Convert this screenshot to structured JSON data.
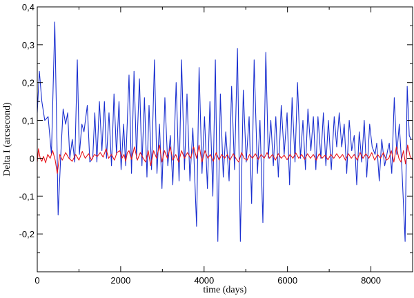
{
  "chart_data": {
    "type": "line",
    "title": "",
    "xlabel": "time (days)",
    "ylabel": "Delta I (arcsecond)",
    "xlim": [
      0,
      9000
    ],
    "ylim": [
      -0.3,
      0.4
    ],
    "x_ticks": [
      {
        "value": 0,
        "label": "0"
      },
      {
        "value": 2000,
        "label": "2000"
      },
      {
        "value": 4000,
        "label": "4000"
      },
      {
        "value": 6000,
        "label": "6000"
      },
      {
        "value": 8000,
        "label": "8000"
      }
    ],
    "y_ticks": [
      {
        "value": -0.2,
        "label": "-0,2"
      },
      {
        "value": -0.1,
        "label": "-0,1"
      },
      {
        "value": 0,
        "label": "0"
      },
      {
        "value": 0.1,
        "label": "0,1"
      },
      {
        "value": 0.2,
        "label": "0,2"
      },
      {
        "value": 0.3,
        "label": "0,3"
      },
      {
        "value": 0.4,
        "label": "0,4"
      }
    ],
    "grid": false,
    "legend": "none",
    "series": [
      {
        "color": "#1a2fd0",
        "points": [
          [
            0,
            0.12
          ],
          [
            50,
            0.23
          ],
          [
            110,
            0.15
          ],
          [
            180,
            0.1
          ],
          [
            260,
            0.11
          ],
          [
            340,
            0.01
          ],
          [
            420,
            0.36
          ],
          [
            470,
            0.06
          ],
          [
            500,
            -0.15
          ],
          [
            560,
            0.0
          ],
          [
            620,
            0.13
          ],
          [
            680,
            0.09
          ],
          [
            730,
            0.12
          ],
          [
            780,
            0.0
          ],
          [
            840,
            0.05
          ],
          [
            900,
            -0.01
          ],
          [
            960,
            0.26
          ],
          [
            1010,
            0.01
          ],
          [
            1070,
            0.09
          ],
          [
            1120,
            0.07
          ],
          [
            1200,
            0.14
          ],
          [
            1260,
            -0.01
          ],
          [
            1330,
            0.0
          ],
          [
            1380,
            0.12
          ],
          [
            1430,
            -0.01
          ],
          [
            1490,
            0.15
          ],
          [
            1550,
            0.02
          ],
          [
            1610,
            0.15
          ],
          [
            1660,
            0.0
          ],
          [
            1720,
            0.12
          ],
          [
            1780,
            -0.02
          ],
          [
            1840,
            0.17
          ],
          [
            1900,
            0.01
          ],
          [
            1960,
            0.15
          ],
          [
            2010,
            -0.03
          ],
          [
            2070,
            0.09
          ],
          [
            2120,
            -0.02
          ],
          [
            2200,
            0.22
          ],
          [
            2260,
            -0.04
          ],
          [
            2320,
            0.23
          ],
          [
            2380,
            0.0
          ],
          [
            2450,
            0.21
          ],
          [
            2510,
            -0.02
          ],
          [
            2570,
            0.16
          ],
          [
            2630,
            -0.05
          ],
          [
            2680,
            0.14
          ],
          [
            2740,
            -0.03
          ],
          [
            2810,
            0.26
          ],
          [
            2870,
            -0.04
          ],
          [
            2930,
            0.09
          ],
          [
            2990,
            -0.08
          ],
          [
            3060,
            0.16
          ],
          [
            3130,
            -0.02
          ],
          [
            3190,
            0.06
          ],
          [
            3250,
            -0.07
          ],
          [
            3330,
            0.2
          ],
          [
            3400,
            -0.06
          ],
          [
            3460,
            0.26
          ],
          [
            3530,
            -0.03
          ],
          [
            3590,
            0.17
          ],
          [
            3660,
            -0.06
          ],
          [
            3730,
            0.08
          ],
          [
            3820,
            -0.18
          ],
          [
            3880,
            0.24
          ],
          [
            3950,
            -0.04
          ],
          [
            4010,
            0.11
          ],
          [
            4080,
            -0.08
          ],
          [
            4140,
            0.15
          ],
          [
            4210,
            -0.1
          ],
          [
            4270,
            0.26
          ],
          [
            4330,
            -0.22
          ],
          [
            4390,
            0.17
          ],
          [
            4460,
            -0.05
          ],
          [
            4520,
            0.07
          ],
          [
            4600,
            -0.06
          ],
          [
            4660,
            0.19
          ],
          [
            4730,
            -0.03
          ],
          [
            4800,
            0.29
          ],
          [
            4870,
            -0.22
          ],
          [
            4940,
            0.18
          ],
          [
            5010,
            -0.01
          ],
          [
            5080,
            0.11
          ],
          [
            5140,
            -0.12
          ],
          [
            5200,
            0.26
          ],
          [
            5280,
            -0.04
          ],
          [
            5340,
            0.1
          ],
          [
            5410,
            -0.17
          ],
          [
            5480,
            0.28
          ],
          [
            5540,
            0.0
          ],
          [
            5600,
            0.1
          ],
          [
            5660,
            -0.02
          ],
          [
            5720,
            0.11
          ],
          [
            5780,
            -0.05
          ],
          [
            5850,
            0.14
          ],
          [
            5920,
            0.01
          ],
          [
            5990,
            0.12
          ],
          [
            6050,
            -0.07
          ],
          [
            6110,
            0.16
          ],
          [
            6180,
            -0.01
          ],
          [
            6240,
            0.2
          ],
          [
            6310,
            0.0
          ],
          [
            6370,
            0.1
          ],
          [
            6430,
            -0.03
          ],
          [
            6490,
            0.13
          ],
          [
            6560,
            0.02
          ],
          [
            6620,
            0.11
          ],
          [
            6680,
            -0.03
          ],
          [
            6730,
            0.11
          ],
          [
            6800,
            0.0
          ],
          [
            6860,
            0.12
          ],
          [
            6920,
            -0.02
          ],
          [
            6980,
            0.1
          ],
          [
            7050,
            -0.03
          ],
          [
            7120,
            0.11
          ],
          [
            7180,
            0.03
          ],
          [
            7240,
            0.12
          ],
          [
            7300,
            0.03
          ],
          [
            7360,
            0.09
          ],
          [
            7420,
            -0.04
          ],
          [
            7480,
            0.1
          ],
          [
            7540,
            0.02
          ],
          [
            7600,
            0.06
          ],
          [
            7660,
            -0.07
          ],
          [
            7720,
            0.07
          ],
          [
            7780,
            -0.01
          ],
          [
            7840,
            0.1
          ],
          [
            7900,
            -0.05
          ],
          [
            7970,
            0.09
          ],
          [
            8030,
            0.03
          ],
          [
            8100,
            0.01
          ],
          [
            8140,
            0.04
          ],
          [
            8200,
            -0.06
          ],
          [
            8260,
            0.05
          ],
          [
            8330,
            -0.02
          ],
          [
            8400,
            0.02
          ],
          [
            8440,
            0.04
          ],
          [
            8500,
            -0.04
          ],
          [
            8560,
            0.16
          ],
          [
            8620,
            0.01
          ],
          [
            8680,
            0.09
          ],
          [
            8740,
            -0.02
          ],
          [
            8820,
            -0.22
          ],
          [
            8870,
            0.19
          ],
          [
            8920,
            0.06
          ],
          [
            8960,
            0.05
          ],
          [
            9000,
            0.05
          ]
        ]
      },
      {
        "color": "#e8161b",
        "points": [
          [
            0,
            -0.01
          ],
          [
            30,
            0.025
          ],
          [
            70,
            0.0
          ],
          [
            110,
            -0.008
          ],
          [
            150,
            0.005
          ],
          [
            200,
            -0.012
          ],
          [
            250,
            0.01
          ],
          [
            310,
            0.0
          ],
          [
            370,
            0.02
          ],
          [
            430,
            -0.005
          ],
          [
            480,
            -0.04
          ],
          [
            540,
            0.01
          ],
          [
            600,
            -0.005
          ],
          [
            680,
            0.015
          ],
          [
            760,
            0.0
          ],
          [
            840,
            -0.008
          ],
          [
            920,
            0.01
          ],
          [
            1000,
            -0.005
          ],
          [
            1080,
            0.018
          ],
          [
            1150,
            0.0
          ],
          [
            1230,
            0.012
          ],
          [
            1300,
            -0.005
          ],
          [
            1370,
            0.01
          ],
          [
            1440,
            0.005
          ],
          [
            1510,
            0.015
          ],
          [
            1580,
            0.003
          ],
          [
            1650,
            0.025
          ],
          [
            1710,
            0.0
          ],
          [
            1780,
            0.01
          ],
          [
            1850,
            -0.005
          ],
          [
            1910,
            0.015
          ],
          [
            1980,
            0.02
          ],
          [
            2030,
            0.0
          ],
          [
            2080,
            0.01
          ],
          [
            2120,
            -0.008
          ],
          [
            2160,
            0.015
          ],
          [
            2200,
            0.02
          ],
          [
            2260,
            -0.003
          ],
          [
            2330,
            0.03
          ],
          [
            2400,
            -0.005
          ],
          [
            2470,
            0.015
          ],
          [
            2540,
            0.0
          ],
          [
            2600,
            -0.01
          ],
          [
            2660,
            0.02
          ],
          [
            2720,
            -0.02
          ],
          [
            2790,
            0.02
          ],
          [
            2860,
            0.0
          ],
          [
            2930,
            0.035
          ],
          [
            2990,
            -0.01
          ],
          [
            3050,
            0.02
          ],
          [
            3120,
            0.0
          ],
          [
            3190,
            0.03
          ],
          [
            3250,
            -0.005
          ],
          [
            3320,
            0.01
          ],
          [
            3390,
            -0.01
          ],
          [
            3460,
            0.02
          ],
          [
            3530,
            0.0
          ],
          [
            3600,
            0.015
          ],
          [
            3680,
            0.0
          ],
          [
            3750,
            0.03
          ],
          [
            3820,
            0.0
          ],
          [
            3880,
            0.035
          ],
          [
            3950,
            -0.01
          ],
          [
            4020,
            0.02
          ],
          [
            4090,
            0.0
          ],
          [
            4150,
            0.01
          ],
          [
            4220,
            -0.008
          ],
          [
            4290,
            0.015
          ],
          [
            4360,
            -0.005
          ],
          [
            4420,
            0.01
          ],
          [
            4490,
            0.0
          ],
          [
            4560,
            0.01
          ],
          [
            4620,
            -0.005
          ],
          [
            4700,
            0.012
          ],
          [
            4760,
            0.0
          ],
          [
            4830,
            -0.01
          ],
          [
            4900,
            0.015
          ],
          [
            4960,
            0.0
          ],
          [
            5030,
            -0.005
          ],
          [
            5090,
            0.01
          ],
          [
            5160,
            0.0
          ],
          [
            5230,
            0.012
          ],
          [
            5300,
            -0.003
          ],
          [
            5370,
            0.01
          ],
          [
            5440,
            0.0
          ],
          [
            5510,
            0.015
          ],
          [
            5570,
            0.0
          ],
          [
            5640,
            0.01
          ],
          [
            5710,
            -0.005
          ],
          [
            5780,
            0.012
          ],
          [
            5850,
            0.0
          ],
          [
            5920,
            0.008
          ],
          [
            5990,
            -0.004
          ],
          [
            6060,
            0.01
          ],
          [
            6130,
            0.0
          ],
          [
            6200,
            0.014
          ],
          [
            6270,
            0.0
          ],
          [
            6340,
            0.01
          ],
          [
            6410,
            -0.003
          ],
          [
            6480,
            0.012
          ],
          [
            6550,
            0.0
          ],
          [
            6620,
            0.01
          ],
          [
            6690,
            -0.005
          ],
          [
            6760,
            0.012
          ],
          [
            6830,
            0.0
          ],
          [
            6900,
            0.008
          ],
          [
            6970,
            -0.004
          ],
          [
            7040,
            0.01
          ],
          [
            7110,
            0.0
          ],
          [
            7180,
            0.012
          ],
          [
            7250,
            0.0
          ],
          [
            7320,
            0.01
          ],
          [
            7390,
            -0.005
          ],
          [
            7460,
            0.012
          ],
          [
            7530,
            0.0
          ],
          [
            7600,
            0.01
          ],
          [
            7670,
            -0.005
          ],
          [
            7740,
            0.015
          ],
          [
            7810,
            0.0
          ],
          [
            7880,
            0.012
          ],
          [
            7950,
            0.0
          ],
          [
            8020,
            0.015
          ],
          [
            8090,
            -0.005
          ],
          [
            8160,
            0.01
          ],
          [
            8230,
            0.0
          ],
          [
            8300,
            0.015
          ],
          [
            8370,
            -0.005
          ],
          [
            8430,
            0.0
          ],
          [
            8490,
            0.02
          ],
          [
            8550,
            -0.01
          ],
          [
            8610,
            0.03
          ],
          [
            8670,
            0.0
          ],
          [
            8720,
            -0.01
          ],
          [
            8780,
            0.02
          ],
          [
            8830,
            -0.015
          ],
          [
            8880,
            0.035
          ],
          [
            8940,
            0.005
          ],
          [
            9000,
            -0.005
          ]
        ]
      }
    ]
  }
}
